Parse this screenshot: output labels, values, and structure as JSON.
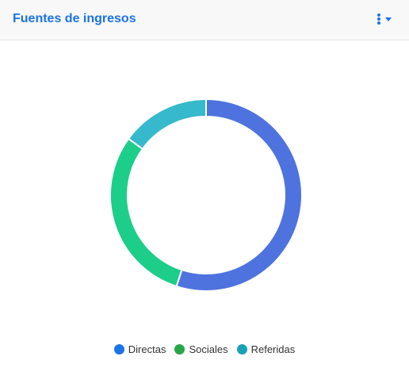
{
  "header": {
    "title": "Fuentes de ingresos",
    "menu_icon": "vertical-dots-icon",
    "dropdown_icon": "caret-down-icon"
  },
  "colors": {
    "title": "#1a73e8",
    "header_bg": "#f8f8f8"
  },
  "chart_data": {
    "type": "pie",
    "variant": "doughnut",
    "categories": [
      "Directas",
      "Sociales",
      "Referidas"
    ],
    "values": [
      55,
      30,
      15
    ],
    "slice_colors": [
      "#4e73df",
      "#1cce8a",
      "#36b9cc"
    ],
    "legend_colors": [
      "#1a73e8",
      "#28a745",
      "#17a2b8"
    ],
    "legend_position": "bottom"
  }
}
